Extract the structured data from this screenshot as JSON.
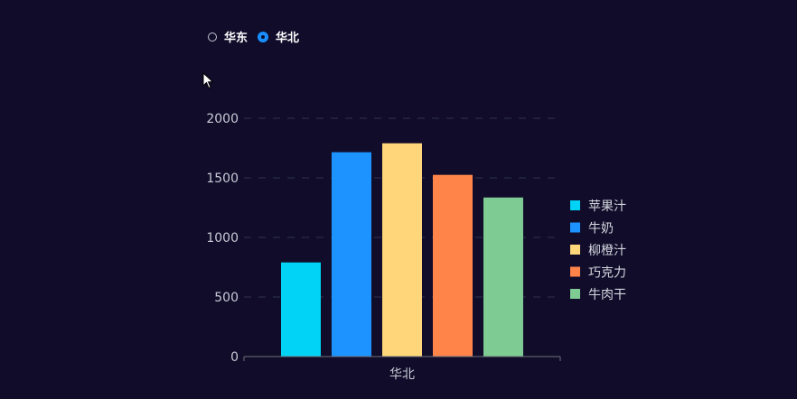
{
  "radio": {
    "options": [
      {
        "label": "华东",
        "checked": false
      },
      {
        "label": "华北",
        "checked": true
      }
    ]
  },
  "colors": {
    "background": "#100c2a",
    "accent": "#1890ff",
    "gridline": "#2f3350"
  },
  "chart_data": {
    "type": "bar",
    "categories": [
      "华北"
    ],
    "series": [
      {
        "name": "苹果汁",
        "values": [
          790
        ],
        "color": "#00d3f6"
      },
      {
        "name": "牛奶",
        "values": [
          1715
        ],
        "color": "#1c93ff"
      },
      {
        "name": "柳橙汁",
        "values": [
          1790
        ],
        "color": "#ffd67a"
      },
      {
        "name": "巧克力",
        "values": [
          1525
        ],
        "color": "#ff844a"
      },
      {
        "name": "牛肉干",
        "values": [
          1335
        ],
        "color": "#7ecb93"
      }
    ],
    "yticks": [
      "0",
      "500",
      "1000",
      "1500",
      "2000"
    ],
    "ylim": [
      0,
      2000
    ],
    "grid": true,
    "legend_position": "right"
  }
}
